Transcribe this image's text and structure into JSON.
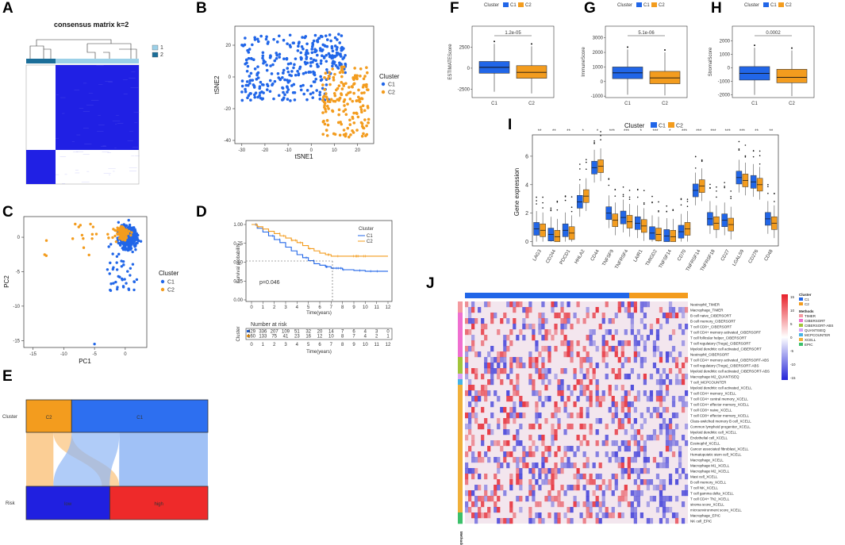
{
  "colors": {
    "c1": "#2166e8",
    "c2": "#f39c1e",
    "low": "#2020e0",
    "high": "#ee2a2a",
    "heat_blue": "#2b2bd8"
  },
  "panels": {
    "A": "A",
    "B": "B",
    "C": "C",
    "D": "D",
    "E": "E",
    "F": "F",
    "G": "G",
    "H": "H",
    "I": "I",
    "J": "J"
  },
  "chart_data": [
    {
      "id": "A",
      "type": "heatmap",
      "title": "consensus matrix k=2",
      "legend": [
        "1",
        "2"
      ]
    },
    {
      "id": "B",
      "type": "scatter",
      "xlabel": "tSNE1",
      "ylabel": "tSNE2",
      "xticks": [
        "-30",
        "-20",
        "-10",
        "0",
        "10",
        "20"
      ],
      "yticks": [
        "-40",
        "-20",
        "0",
        "20"
      ],
      "xlim": [
        -33,
        27
      ],
      "ylim": [
        -42,
        32
      ],
      "legend_title": "Cluster",
      "legend": [
        "C1",
        "C2"
      ]
    },
    {
      "id": "C",
      "type": "scatter",
      "xlabel": "PC1",
      "ylabel": "PC2",
      "xticks": [
        "-15",
        "-10",
        "-5",
        "0"
      ],
      "yticks": [
        "-15",
        "-10",
        "-5",
        "0"
      ],
      "xlim": [
        -16.5,
        3.5
      ],
      "ylim": [
        -16,
        3
      ],
      "legend_title": "Cluster",
      "legend": [
        "C1",
        "C2"
      ]
    },
    {
      "id": "D",
      "type": "line",
      "xlabel": "Time(years)",
      "ylabel": "Survival probability",
      "pvalue": "p=0.046",
      "xticks": [
        "0",
        "1",
        "2",
        "3",
        "4",
        "5",
        "6",
        "7",
        "8",
        "9",
        "10",
        "11",
        "12"
      ],
      "yticks": [
        "0.00",
        "0.25",
        "0.50",
        "0.75",
        "1.00"
      ],
      "legend_title": "Cluster",
      "legend": [
        "C1",
        "C2"
      ],
      "risk_title": "Number at risk",
      "risk_axis_label": "Cluster",
      "series": [
        {
          "name": "C1",
          "x": [
            0,
            0.5,
            1,
            1.5,
            2,
            2.5,
            3,
            3.5,
            4,
            4.5,
            5,
            5.5,
            6,
            6.5,
            7,
            8,
            9,
            10,
            11,
            12
          ],
          "y": [
            1.0,
            0.95,
            0.9,
            0.85,
            0.8,
            0.76,
            0.7,
            0.65,
            0.6,
            0.56,
            0.52,
            0.48,
            0.46,
            0.44,
            0.42,
            0.4,
            0.39,
            0.38,
            0.38,
            0.38
          ]
        },
        {
          "name": "C2",
          "x": [
            0,
            0.5,
            1,
            1.5,
            2,
            2.5,
            3,
            3.5,
            4,
            4.5,
            5,
            5.5,
            6,
            6.5,
            7,
            8,
            9,
            10,
            11,
            12
          ],
          "y": [
            1.0,
            0.97,
            0.94,
            0.91,
            0.88,
            0.85,
            0.82,
            0.79,
            0.76,
            0.72,
            0.68,
            0.65,
            0.62,
            0.6,
            0.58,
            0.58,
            0.58,
            0.58,
            0.58,
            0.58
          ]
        }
      ],
      "risk": {
        "C1": [
          "429",
          "336",
          "207",
          "109",
          "51",
          "32",
          "20",
          "14",
          "7",
          "6",
          "4",
          "3",
          "0"
        ],
        "C2": [
          "160",
          "133",
          "75",
          "41",
          "23",
          "16",
          "12",
          "10",
          "8",
          "7",
          "4",
          "2",
          "1"
        ]
      }
    },
    {
      "id": "E",
      "type": "area",
      "axis_labels": [
        "Cluster",
        "Risk"
      ],
      "top": [
        {
          "name": "C2",
          "share": 0.25
        },
        {
          "name": "C1",
          "share": 0.75
        }
      ],
      "bottom": [
        {
          "name": "low",
          "share": 0.46
        },
        {
          "name": "high",
          "share": 0.54
        }
      ]
    },
    {
      "id": "F",
      "type": "bar",
      "ylabel": "ESTIMATEScore",
      "pvalue": "1.2e-05",
      "categories": [
        "C1",
        "C2"
      ],
      "yticks": [
        "-2500",
        "0",
        "2500"
      ],
      "ylim": [
        -3500,
        5000
      ],
      "legend_title": "Cluster",
      "legend": [
        "C1",
        "C2"
      ],
      "boxes": [
        {
          "min": -2800,
          "q1": -600,
          "med": 100,
          "q3": 800,
          "max": 2900
        },
        {
          "min": -3000,
          "q1": -1200,
          "med": -500,
          "q3": 300,
          "max": 2600
        }
      ]
    },
    {
      "id": "G",
      "type": "bar",
      "ylabel": "ImmuneScore",
      "pvalue": "5.1e-06",
      "categories": [
        "C1",
        "C2"
      ],
      "yticks": [
        "-1000",
        "0",
        "1000",
        "2000",
        "3000"
      ],
      "ylim": [
        -1100,
        3800
      ],
      "legend_title": "Cluster",
      "legend": [
        "C1",
        "C2"
      ],
      "boxes": [
        {
          "min": -900,
          "q1": 200,
          "med": 600,
          "q3": 1000,
          "max": 2200
        },
        {
          "min": -950,
          "q1": -150,
          "med": 250,
          "q3": 700,
          "max": 2000
        }
      ]
    },
    {
      "id": "H",
      "type": "bar",
      "ylabel": "StromalScore",
      "pvalue": "0.0002",
      "categories": [
        "C1",
        "C2"
      ],
      "yticks": [
        "-2000",
        "-1000",
        "0",
        "1000",
        "2000"
      ],
      "ylim": [
        -2200,
        3100
      ],
      "legend_title": "Cluster",
      "legend": [
        "C1",
        "C2"
      ],
      "boxes": [
        {
          "min": -2000,
          "q1": -900,
          "med": -400,
          "q3": 100,
          "max": 1500
        },
        {
          "min": -2100,
          "q1": -1100,
          "med": -700,
          "q3": -100,
          "max": 1300
        }
      ]
    },
    {
      "id": "I",
      "type": "bar",
      "ylabel": "Gene expression",
      "ylim": [
        -0.3,
        7.5
      ],
      "yticks": [
        "0",
        "2",
        "4",
        "6"
      ],
      "legend_title": "Cluster",
      "legend": [
        "C1",
        "C2"
      ],
      "categories": [
        "LAG3",
        "CD244",
        "PDCD1",
        "HHLA2",
        "CD44",
        "TNFSF9",
        "TNFRSF4",
        "LAIR1",
        "TMIGD2",
        "TNFSF14",
        "CD70",
        "TNFRSF14",
        "TNFRSF18",
        "CD27",
        "LGALS9",
        "CD276",
        "CD48"
      ],
      "signif": [
        "**",
        "**",
        "**",
        "*",
        "*",
        "***",
        "***",
        "*",
        "***",
        "*",
        "***",
        "***",
        "***",
        "***",
        "***",
        "**",
        "**"
      ],
      "series": [
        {
          "name": "C1",
          "values": [
            0.9,
            0.5,
            0.8,
            2.8,
            5.2,
            2.0,
            1.7,
            1.3,
            0.6,
            0.4,
            0.7,
            3.6,
            1.6,
            1.5,
            4.5,
            4.2,
            1.6
          ]
        },
        {
          "name": "C2",
          "values": [
            0.8,
            0.35,
            0.6,
            3.2,
            5.3,
            1.5,
            1.4,
            1.1,
            0.5,
            0.35,
            0.9,
            3.9,
            1.3,
            1.2,
            4.3,
            4.0,
            1.3
          ]
        }
      ]
    },
    {
      "id": "J",
      "type": "heatmap",
      "rows": [
        "Neutrophil_TIMER",
        "Macrophage_TIMER",
        "B cell naive_CIBERSORT",
        "B cell memory_CIBERSORT",
        "T cell CD8+_CIBERSORT",
        "T cell CD4+ memory activated_CIBERSORT",
        "T cell follicular helper_CIBERSORT",
        "T cell regulatory (Tregs)_CIBERSORT",
        "Myeloid dendritic cell activated_CIBERSORT",
        "Neutrophil_CIBERSORT",
        "T cell CD4+ memory activated_CIBERSORT-ABS",
        "T cell regulatory (Tregs)_CIBERSORT-ABS",
        "Myeloid dendritic cell activated_CIBERSORT-ABS",
        "Macrophage M2_QUANTISEQ",
        "T cell_MCPCOUNTER",
        "Myeloid dendritic cell activated_XCELL",
        "T cell CD4+ memory_XCELL",
        "T cell CD4+ central memory_XCELL",
        "T cell CD4+ effector memory_XCELL",
        "T cell CD8+ naive_XCELL",
        "T cell CD8+ effector memory_XCELL",
        "Class-switched memory B cell_XCELL",
        "Common lymphoid progenitor_XCELL",
        "Myeloid dendritic cell_XCELL",
        "Endothelial cell_XCELL",
        "Eosinophil_XCELL",
        "Cancer associated fibroblast_XCELL",
        "Hematopoietic stem cell_XCELL",
        "Macrophage_XCELL",
        "Macrophage M1_XCELL",
        "Macrophage M2_XCELL",
        "Mast cell_XCELL",
        "B cell memory_XCELL",
        "T cell NK_XCELL",
        "T cell gamma delta_XCELL",
        "T cell CD4+ Th2_XCELL",
        "stroma score_XCELL",
        "microenvironment score_XCELL",
        "Macrophage_EPIC",
        "NK cell_EPIC"
      ],
      "legend_cluster_title": "Cluster",
      "legend_cluster": [
        "C1",
        "C2"
      ],
      "legend_methods_title": "Methods",
      "methods": [
        "TIMER",
        "CIBERSORT",
        "CIBERSORT-ABS",
        "QUANTISEQ",
        "MCPCOUNTER",
        "XCELL",
        "EPIC"
      ],
      "method_colors": [
        "#f49aa0",
        "#ef6fd0",
        "#a2c43a",
        "#d9a1f5",
        "#46b3e6",
        "#f0b03a",
        "#3cc06a"
      ],
      "scale_ticks": [
        "15",
        "10",
        "5",
        "0",
        "-5",
        "-10",
        "-15"
      ],
      "axis_label": "Methods"
    }
  ]
}
